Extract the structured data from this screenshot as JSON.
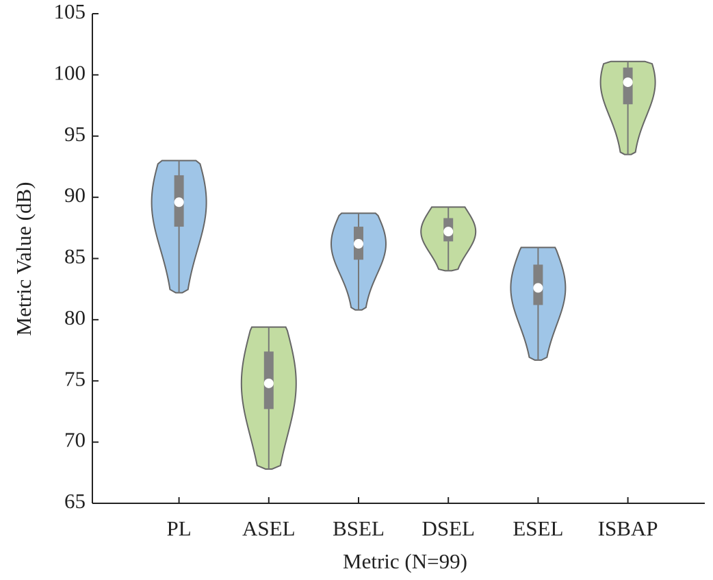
{
  "chart_data": {
    "type": "violin",
    "ylabel": "Metric Value (dB)",
    "xlabel": "Metric (N=99)",
    "categories": [
      "PL",
      "ASEL",
      "BSEL",
      "DSEL",
      "ESEL",
      "ISBAP"
    ],
    "colors": [
      "#2b7fca",
      "#78b12f",
      "#2b7fca",
      "#78b12f",
      "#2b7fca",
      "#78b12f"
    ],
    "min": [
      82.2,
      67.8,
      80.8,
      84.0,
      76.7,
      93.5
    ],
    "q1": [
      87.6,
      72.7,
      84.9,
      86.4,
      81.2,
      97.6
    ],
    "median": [
      89.6,
      74.8,
      86.2,
      87.2,
      82.6,
      99.4
    ],
    "q3": [
      91.8,
      77.4,
      87.6,
      88.3,
      84.5,
      100.6
    ],
    "max": [
      93.0,
      79.4,
      88.7,
      89.2,
      85.9,
      101.1
    ],
    "ylim": [
      65,
      105
    ],
    "yticks": [
      65,
      70,
      75,
      80,
      85,
      90,
      95,
      100,
      105
    ]
  }
}
